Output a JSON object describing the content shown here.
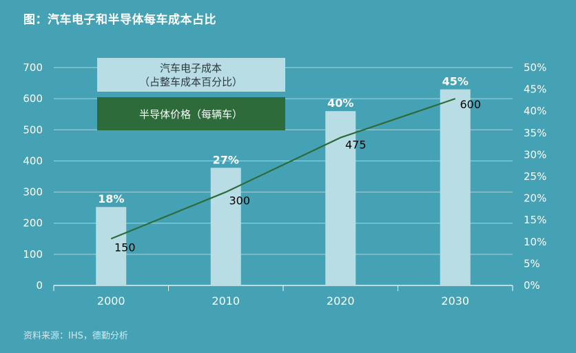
{
  "title": "图：汽车电子和半导体每车成本占比",
  "source": "资料来源：IHS，德勤分析",
  "colors": {
    "background": "#45a2b5",
    "bar": "#b8dde5",
    "line": "#2e6b3a",
    "legend_line_box": "#2e6b3a",
    "grid": "#a9d6df"
  },
  "chart_data": {
    "type": "bar",
    "categories": [
      "2000",
      "2010",
      "2020",
      "2030"
    ],
    "series": [
      {
        "name": "汽车电子成本（占整车成本百分比）",
        "type": "bar",
        "axis": "right",
        "values": [
          18,
          27,
          40,
          45
        ],
        "labels": [
          "18%",
          "27%",
          "40%",
          "45%"
        ]
      },
      {
        "name": "半导体价格（每辆车）",
        "type": "line",
        "axis": "left",
        "values": [
          150,
          300,
          475,
          600
        ],
        "labels": [
          "150",
          "300",
          "475",
          "600"
        ]
      }
    ],
    "legend": [
      "汽车电子成本",
      "（占整车成本百分比）",
      "半导体价格（每辆车）"
    ],
    "legend_position": "top-left",
    "ylim_left": [
      0,
      700
    ],
    "yticks_left": [
      "0",
      "100",
      "200",
      "300",
      "400",
      "500",
      "600",
      "700"
    ],
    "ylim_right": [
      0,
      50
    ],
    "yticks_right": [
      "0%",
      "5%",
      "10%",
      "15%",
      "20%",
      "25%",
      "30%",
      "35%",
      "40%",
      "45%",
      "50%"
    ],
    "grid": true
  }
}
